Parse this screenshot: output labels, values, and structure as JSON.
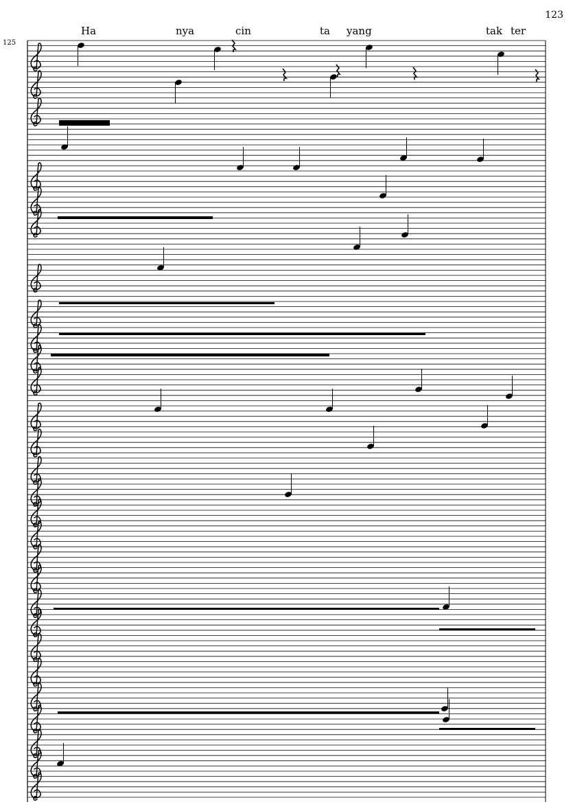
{
  "page_number": "123",
  "measure_number": "125",
  "lyrics": [
    "Ha",
    "nya",
    "cin",
    "ta",
    "yang",
    "tak",
    "ter"
  ],
  "score": {
    "clef": "treble-clef",
    "ink_color": "#000000",
    "paper_color": "#ffffff"
  }
}
